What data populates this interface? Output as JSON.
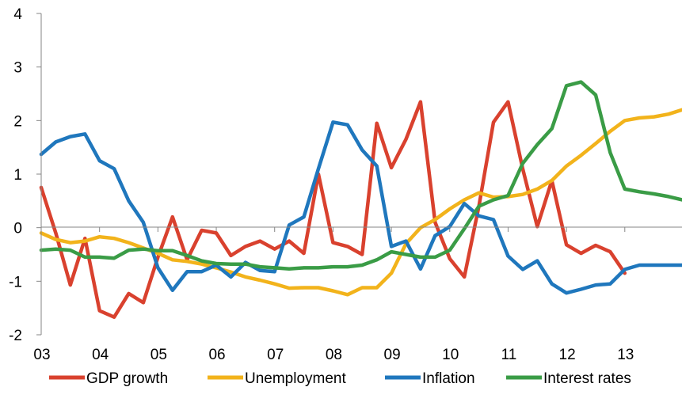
{
  "chart_data": {
    "type": "line",
    "title": "",
    "xlabel": "",
    "ylabel": "",
    "ylim": [
      -2,
      4
    ],
    "yticks": [
      "4",
      "3",
      "2",
      "1",
      "0",
      "-1",
      "-2"
    ],
    "xticks": [
      "03",
      "04",
      "05",
      "06",
      "07",
      "08",
      "09",
      "10",
      "11",
      "12",
      "13"
    ],
    "xlim": [
      2003.0,
      2013.98
    ],
    "grid": false,
    "legend_position": "bottom",
    "series": [
      {
        "name": "GDP growth",
        "color": "#d9412e",
        "x": [
          2003.0,
          2003.25,
          2003.5,
          2003.75,
          2004.0,
          2004.25,
          2004.5,
          2004.75,
          2005.0,
          2005.25,
          2005.5,
          2005.75,
          2006.0,
          2006.25,
          2006.5,
          2006.75,
          2007.0,
          2007.25,
          2007.5,
          2007.75,
          2008.0,
          2008.25,
          2008.5,
          2008.75,
          2009.0,
          2009.25,
          2009.5,
          2009.75,
          2010.0,
          2010.25,
          2010.5,
          2010.75,
          2011.0,
          2011.25,
          2011.5,
          2011.75,
          2012.0,
          2012.25,
          2012.5,
          2012.75,
          2013.0
        ],
        "values": [
          0.75,
          -0.1,
          -1.07,
          -0.2,
          -1.55,
          -1.67,
          -1.23,
          -1.4,
          -0.55,
          0.2,
          -0.6,
          -0.05,
          -0.1,
          -0.52,
          -0.35,
          -0.25,
          -0.4,
          -0.25,
          -0.48,
          1.0,
          -0.28,
          -0.35,
          -0.5,
          1.95,
          1.12,
          1.65,
          2.35,
          0.1,
          -0.58,
          -0.92,
          0.4,
          1.97,
          2.35,
          1.1,
          0.02,
          0.88,
          -0.32,
          -0.48,
          -0.33,
          -0.45,
          -0.85
        ]
      },
      {
        "name": "Unemployment",
        "color": "#f2b31b",
        "x": [
          2003.0,
          2003.25,
          2003.5,
          2003.75,
          2004.0,
          2004.25,
          2004.5,
          2004.75,
          2005.0,
          2005.25,
          2005.5,
          2005.75,
          2006.0,
          2006.25,
          2006.5,
          2006.75,
          2007.0,
          2007.25,
          2007.5,
          2007.75,
          2008.0,
          2008.25,
          2008.5,
          2008.75,
          2009.0,
          2009.25,
          2009.5,
          2009.75,
          2010.0,
          2010.25,
          2010.5,
          2010.75,
          2011.0,
          2011.25,
          2011.5,
          2011.75,
          2012.0,
          2012.25,
          2012.5,
          2012.75,
          2013.0,
          2013.25,
          2013.5,
          2013.75,
          2013.98
        ],
        "values": [
          -0.1,
          -0.22,
          -0.28,
          -0.25,
          -0.17,
          -0.2,
          -0.28,
          -0.38,
          -0.48,
          -0.6,
          -0.63,
          -0.68,
          -0.75,
          -0.83,
          -0.92,
          -0.98,
          -1.05,
          -1.13,
          -1.12,
          -1.12,
          -1.18,
          -1.25,
          -1.12,
          -1.12,
          -0.85,
          -0.3,
          0.0,
          0.15,
          0.35,
          0.52,
          0.65,
          0.57,
          0.58,
          0.62,
          0.72,
          0.88,
          1.15,
          1.35,
          1.57,
          1.8,
          2.0,
          2.05,
          2.07,
          2.12,
          2.2
        ]
      },
      {
        "name": "Inflation",
        "color": "#1f77bd",
        "x": [
          2003.0,
          2003.25,
          2003.5,
          2003.75,
          2004.0,
          2004.25,
          2004.5,
          2004.75,
          2005.0,
          2005.25,
          2005.5,
          2005.75,
          2006.0,
          2006.25,
          2006.5,
          2006.75,
          2007.0,
          2007.25,
          2007.5,
          2007.75,
          2008.0,
          2008.25,
          2008.5,
          2008.75,
          2009.0,
          2009.25,
          2009.5,
          2009.75,
          2010.0,
          2010.25,
          2010.5,
          2010.75,
          2011.0,
          2011.25,
          2011.5,
          2011.75,
          2012.0,
          2012.25,
          2012.5,
          2012.75,
          2013.0,
          2013.25,
          2013.5,
          2013.75,
          2013.98
        ],
        "values": [
          1.37,
          1.6,
          1.7,
          1.75,
          1.25,
          1.1,
          0.5,
          0.1,
          -0.75,
          -1.17,
          -0.82,
          -0.82,
          -0.7,
          -0.92,
          -0.65,
          -0.8,
          -0.82,
          0.05,
          0.2,
          1.1,
          1.97,
          1.92,
          1.45,
          1.15,
          -0.35,
          -0.25,
          -0.77,
          -0.15,
          0.02,
          0.45,
          0.22,
          0.15,
          -0.53,
          -0.78,
          -0.62,
          -1.05,
          -1.22,
          -1.15,
          -1.07,
          -1.05,
          -0.78,
          -0.7,
          -0.7,
          -0.7,
          -0.7
        ]
      },
      {
        "name": "Interest rates",
        "color": "#3a9c46",
        "x": [
          2003.0,
          2003.25,
          2003.5,
          2003.75,
          2004.0,
          2004.25,
          2004.5,
          2004.75,
          2005.0,
          2005.25,
          2005.5,
          2005.75,
          2006.0,
          2006.25,
          2006.5,
          2006.75,
          2007.0,
          2007.25,
          2007.5,
          2007.75,
          2008.0,
          2008.25,
          2008.5,
          2008.75,
          2009.0,
          2009.25,
          2009.5,
          2009.75,
          2010.0,
          2010.25,
          2010.5,
          2010.75,
          2011.0,
          2011.25,
          2011.5,
          2011.75,
          2012.0,
          2012.25,
          2012.5,
          2012.75,
          2013.0,
          2013.25,
          2013.5,
          2013.75,
          2013.98
        ],
        "values": [
          -0.42,
          -0.4,
          -0.42,
          -0.55,
          -0.55,
          -0.57,
          -0.42,
          -0.4,
          -0.43,
          -0.43,
          -0.52,
          -0.62,
          -0.67,
          -0.68,
          -0.68,
          -0.73,
          -0.75,
          -0.77,
          -0.75,
          -0.75,
          -0.73,
          -0.73,
          -0.7,
          -0.6,
          -0.45,
          -0.5,
          -0.55,
          -0.55,
          -0.42,
          -0.02,
          0.4,
          0.52,
          0.6,
          1.2,
          1.55,
          1.85,
          2.65,
          2.72,
          2.48,
          1.4,
          0.72,
          0.67,
          0.63,
          0.58,
          0.52
        ]
      }
    ]
  }
}
